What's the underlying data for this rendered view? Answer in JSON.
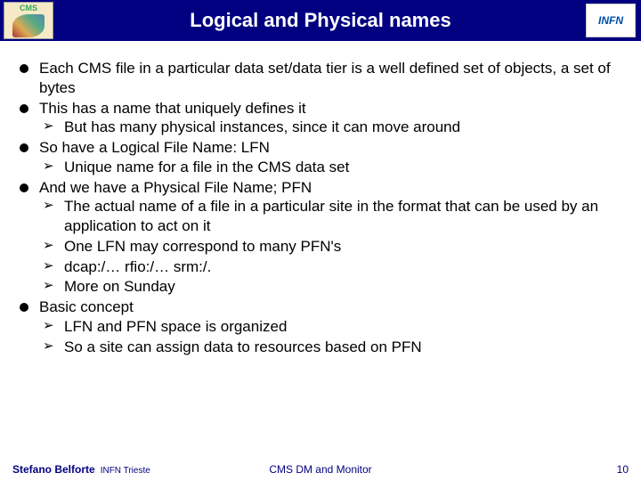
{
  "header": {
    "title": "Logical and Physical names",
    "left_logo_label": "CMS",
    "right_logo_label": "INFN",
    "bg_color": "#000080",
    "title_color": "#ffffff",
    "title_fontsize": 22
  },
  "content": {
    "font_family": "Comic Sans MS",
    "font_size": 17,
    "text_color": "#000000",
    "bullet_color": "#000000",
    "bullets": [
      {
        "text": "Each CMS file in a particular data set/data tier is a well defined set of objects, a set of bytes",
        "sub": []
      },
      {
        "text": "This has a name that uniquely defines it",
        "sub": [
          "But has many physical instances, since it can move around"
        ]
      },
      {
        "text": "So have a Logical File Name: LFN",
        "sub": [
          "Unique name for a file in the CMS data set"
        ]
      },
      {
        "text": "And we have a Physical File Name; PFN",
        "sub": [
          "The actual name of a file in a particular site in the format that can be used by an application to act on it",
          "One LFN may correspond to many PFN's",
          "dcap:/… rfio:/… srm:/.",
          "More on Sunday"
        ]
      },
      {
        "text": "Basic concept",
        "sub": [
          "LFN and PFN space is organized",
          "So a site can assign data to resources based on PFN"
        ]
      }
    ]
  },
  "footer": {
    "author": "Stefano Belforte",
    "affiliation": "INFN Trieste",
    "center": "CMS DM and Monitor",
    "page": "10",
    "color": "#000080",
    "font_size": 12
  }
}
